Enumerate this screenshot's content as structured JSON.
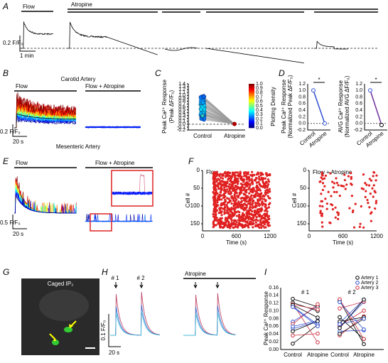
{
  "panels": {
    "A": {
      "label": "A",
      "flow": "Flow",
      "atropine": "Atropine",
      "scale_y": "0.2 F/F₀",
      "scale_x": "1 min"
    },
    "B": {
      "label": "B",
      "title": "Carotid Artery",
      "flow": "Flow",
      "flow_atropine": "Flow + Atropine",
      "scale_y": "0.2 F/F₀",
      "scale_x": "20 s",
      "subtitle": "Mesenteric Artery"
    },
    "C": {
      "label": "C",
      "ylabel": "Peak Ca²⁺ Response",
      "ylabel2": "(Peak ΔF/F₀)",
      "yticks": [
        "1.4",
        "1.3",
        "1.2",
        "1.1",
        "1.0",
        "0.9",
        "0.8",
        "0.7",
        "0.6",
        "0.5",
        "0.4",
        "0.3",
        "0.2",
        "0.1",
        "0.0",
        "-0.1",
        "-0.2"
      ],
      "categories": [
        "Control",
        "Atropine"
      ],
      "colorbar_label": "Plotting Density",
      "colorbar_ticks": [
        "1.0",
        "0.9",
        "0.8",
        "0.7",
        "0.6",
        "0.5",
        "0.4",
        "0.3",
        "0.2",
        "0.1",
        "0.0"
      ]
    },
    "D": {
      "label": "D",
      "left": {
        "ylabel": "Peak Ca²⁺ Response",
        "ylabel2": "(Normalized Peak ΔF/F₀)",
        "yticks": [
          "1.2",
          "1.0",
          "0.8",
          "0.6",
          "0.4",
          "0.2",
          "0.0",
          "-0.2"
        ],
        "categories": [
          "Control",
          "Atropine"
        ],
        "significance": "*"
      },
      "right": {
        "ylabel": "AVG Ca²⁺ Response",
        "ylabel2": "(Normalized AVG ΔF/F₀)",
        "yticks": [
          "1.2",
          "1.0",
          "0.8",
          "0.6",
          "0.4",
          "0.2",
          "0.0",
          "-0.2"
        ],
        "categories": [
          "Control",
          "Atropine"
        ],
        "significance": "*"
      }
    },
    "E": {
      "label": "E",
      "flow": "Flow",
      "flow_atropine": "Flow + Atropine",
      "scale_y": "0.5 F/F₀",
      "scale_x": "20 s"
    },
    "F": {
      "label": "F",
      "left_title": "Flow",
      "right_title": "Flow + Atropine",
      "yticks": [
        "0",
        "50",
        "100",
        "150"
      ],
      "xticks": [
        "0",
        "600",
        "1200"
      ],
      "ylabel": "Cell #",
      "xlabel": "Time (s)"
    },
    "G": {
      "label": "G",
      "title": "Caged IP₃"
    },
    "H": {
      "label": "H",
      "stim1": "# 1",
      "stim2": "# 2",
      "atropine": "Atropine",
      "scale_y": "0.1 F/F₀",
      "scale_x": "20 s"
    },
    "I": {
      "label": "I",
      "ylabel": "Peak Ca²⁺ Response",
      "yticks": [
        "0.16",
        "0.14",
        "0.12",
        "0.10",
        "0.08",
        "0.06",
        "0.04",
        "0.02",
        "0.00"
      ],
      "groups": [
        "# 1",
        "# 2"
      ],
      "categories": [
        "Control",
        "Atropine"
      ],
      "legend": [
        "Artery 1",
        "Artery 2",
        "Artery 3"
      ]
    }
  }
}
